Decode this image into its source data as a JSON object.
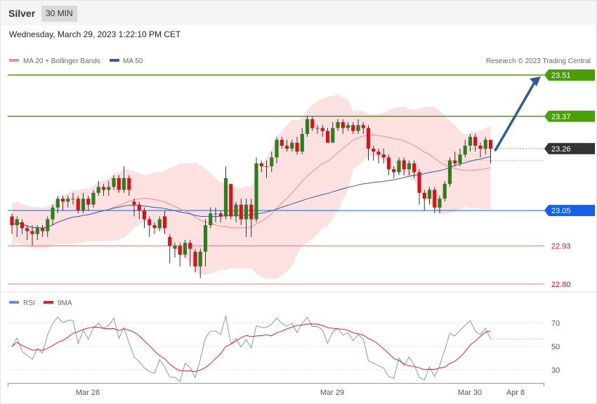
{
  "header": {
    "instrument": "Silver",
    "timeframe": "30 MIN",
    "datetime": "Wednesday, March 29, 2023 1:22:10 PM CET"
  },
  "legend": {
    "ma20": "MA 20 + Bollinger Bands",
    "ma50": "MA 50",
    "copyright": "Research © 2023 Trading Central"
  },
  "rsi_legend": {
    "rsi": "RSI",
    "ma9": "9MA"
  },
  "colors": {
    "up": "#2e7d1f",
    "down": "#d7121a",
    "band": "#fde1e1",
    "ma20": "#f08c8c",
    "ma50": "#3c5a9a",
    "resistance": "#4a9e0a",
    "support_blue": "#1760e6",
    "support_red": "#e07b7b",
    "current": "#333333",
    "arrow": "#2e5c99",
    "rsi": "#6b8fd8",
    "rsi_ma": "#e0232b"
  },
  "chart_data": {
    "type": "candlestick",
    "ylim": [
      22.795,
      23.52
    ],
    "x_ticks": [
      "Mar 28",
      "Mar 29",
      "Mar 30",
      "Apr 8"
    ],
    "levels": [
      {
        "label": "23.51",
        "value": 23.51,
        "kind": "resistance"
      },
      {
        "label": "23.37",
        "value": 23.37,
        "kind": "resistance"
      },
      {
        "label": "23.26",
        "value": 23.26,
        "kind": "current"
      },
      {
        "label": "23.05",
        "value": 23.05,
        "kind": "support_blue"
      },
      {
        "label": "22.93",
        "value": 22.93,
        "kind": "support_red"
      },
      {
        "label": "22.80",
        "value": 22.8,
        "kind": "support_red"
      }
    ],
    "candles": [
      [
        23.03,
        23.0,
        23.04,
        22.97
      ],
      [
        23.0,
        23.02,
        23.03,
        22.96
      ],
      [
        23.01,
        22.99,
        23.02,
        22.97
      ],
      [
        22.99,
        22.98,
        23.0,
        22.95
      ],
      [
        22.98,
        22.97,
        23.0,
        22.93
      ],
      [
        22.97,
        22.99,
        23.0,
        22.95
      ],
      [
        22.99,
        22.98,
        23.0,
        22.96
      ],
      [
        22.98,
        23.02,
        23.03,
        22.96
      ],
      [
        23.02,
        23.06,
        23.07,
        23.0
      ],
      [
        23.06,
        23.09,
        23.1,
        23.04
      ],
      [
        23.09,
        23.08,
        23.1,
        23.05
      ],
      [
        23.08,
        23.09,
        23.1,
        23.06
      ],
      [
        23.09,
        23.09,
        23.11,
        23.07
      ],
      [
        23.09,
        23.05,
        23.1,
        23.04
      ],
      [
        23.05,
        23.09,
        23.11,
        23.04
      ],
      [
        23.09,
        23.07,
        23.1,
        23.05
      ],
      [
        23.07,
        23.11,
        23.12,
        23.06
      ],
      [
        23.11,
        23.13,
        23.15,
        23.1
      ],
      [
        23.13,
        23.12,
        23.14,
        23.1
      ],
      [
        23.12,
        23.13,
        23.15,
        23.1
      ],
      [
        23.13,
        23.16,
        23.17,
        23.12
      ],
      [
        23.16,
        23.12,
        23.17,
        23.11
      ],
      [
        23.12,
        23.16,
        23.2,
        23.11
      ],
      [
        23.16,
        23.12,
        23.17,
        23.1
      ],
      [
        23.08,
        23.07,
        23.09,
        23.03
      ],
      [
        23.07,
        23.05,
        23.08,
        23.02
      ],
      [
        23.05,
        23.02,
        23.06,
        22.99
      ],
      [
        23.02,
        23.0,
        23.03,
        22.96
      ],
      [
        23.0,
        22.99,
        23.01,
        22.97
      ],
      [
        22.99,
        23.02,
        23.03,
        22.98
      ],
      [
        23.03,
        22.99,
        23.05,
        22.97
      ],
      [
        22.96,
        22.93,
        22.97,
        22.87
      ],
      [
        22.92,
        22.93,
        22.94,
        22.89
      ],
      [
        22.93,
        22.9,
        22.94,
        22.86
      ],
      [
        22.9,
        22.94,
        22.95,
        22.89
      ],
      [
        22.94,
        22.92,
        22.95,
        22.86
      ],
      [
        22.91,
        22.86,
        22.92,
        22.84
      ],
      [
        22.86,
        22.91,
        22.92,
        22.82
      ],
      [
        22.91,
        23.0,
        23.02,
        22.86
      ],
      [
        23.0,
        23.04,
        23.06,
        22.99
      ],
      [
        23.04,
        23.04,
        23.06,
        23.01
      ],
      [
        23.04,
        23.03,
        23.05,
        23.01
      ],
      [
        23.03,
        23.16,
        23.2,
        23.02
      ],
      [
        23.14,
        23.03,
        23.14,
        23.02
      ],
      [
        23.03,
        23.07,
        23.08,
        23.01
      ],
      [
        23.07,
        23.02,
        23.09,
        23.0
      ],
      [
        23.02,
        23.07,
        23.09,
        22.96
      ],
      [
        23.07,
        23.02,
        23.09,
        22.96
      ],
      [
        23.02,
        23.21,
        23.23,
        23.01
      ],
      [
        23.21,
        23.2,
        23.22,
        23.18
      ],
      [
        23.2,
        23.2,
        23.22,
        23.16
      ],
      [
        23.2,
        23.23,
        23.25,
        23.18
      ],
      [
        23.23,
        23.29,
        23.3,
        23.21
      ],
      [
        23.29,
        23.27,
        23.3,
        23.26
      ],
      [
        23.27,
        23.26,
        23.29,
        23.25
      ],
      [
        23.26,
        23.28,
        23.29,
        23.25
      ],
      [
        23.28,
        23.25,
        23.3,
        23.24
      ],
      [
        23.25,
        23.31,
        23.33,
        23.24
      ],
      [
        23.31,
        23.36,
        23.37,
        23.3
      ],
      [
        23.36,
        23.33,
        23.37,
        23.32
      ],
      [
        23.33,
        23.33,
        23.34,
        23.31
      ],
      [
        23.33,
        23.32,
        23.34,
        23.3
      ],
      [
        23.32,
        23.28,
        23.33,
        23.28
      ],
      [
        23.28,
        23.33,
        23.35,
        23.28
      ],
      [
        23.33,
        23.35,
        23.36,
        23.32
      ],
      [
        23.35,
        23.33,
        23.36,
        23.31
      ],
      [
        23.33,
        23.34,
        23.35,
        23.32
      ],
      [
        23.34,
        23.32,
        23.35,
        23.31
      ],
      [
        23.32,
        23.34,
        23.36,
        23.31
      ],
      [
        23.34,
        23.33,
        23.35,
        23.31
      ],
      [
        23.33,
        23.26,
        23.34,
        23.22
      ],
      [
        23.26,
        23.25,
        23.27,
        23.22
      ],
      [
        23.25,
        23.24,
        23.26,
        23.21
      ],
      [
        23.24,
        23.23,
        23.26,
        23.21
      ],
      [
        23.23,
        23.19,
        23.24,
        23.17
      ],
      [
        23.19,
        23.18,
        23.2,
        23.16
      ],
      [
        23.18,
        23.22,
        23.23,
        23.17
      ],
      [
        23.22,
        23.19,
        23.23,
        23.17
      ],
      [
        23.19,
        23.21,
        23.22,
        23.17
      ],
      [
        23.21,
        23.18,
        23.22,
        23.16
      ],
      [
        23.18,
        23.11,
        23.19,
        23.07
      ],
      [
        23.11,
        23.09,
        23.12,
        23.05
      ],
      [
        23.09,
        23.12,
        23.13,
        23.07
      ],
      [
        23.12,
        23.06,
        23.13,
        23.04
      ],
      [
        23.06,
        23.09,
        23.1,
        23.04
      ],
      [
        23.09,
        23.14,
        23.15,
        23.08
      ],
      [
        23.14,
        23.22,
        23.23,
        23.13
      ],
      [
        23.22,
        23.21,
        23.25,
        23.2
      ],
      [
        23.21,
        23.24,
        23.26,
        23.2
      ],
      [
        23.24,
        23.27,
        23.29,
        23.23
      ],
      [
        23.27,
        23.3,
        23.31,
        23.25
      ],
      [
        23.3,
        23.27,
        23.31,
        23.25
      ],
      [
        23.27,
        23.26,
        23.28,
        23.23
      ],
      [
        23.26,
        23.29,
        23.3,
        23.24
      ],
      [
        23.29,
        23.26,
        23.29,
        23.21
      ]
    ],
    "indicator": {
      "name": "RSI",
      "ylim": [
        20,
        80
      ],
      "ticks": [
        70,
        50,
        30
      ]
    }
  }
}
